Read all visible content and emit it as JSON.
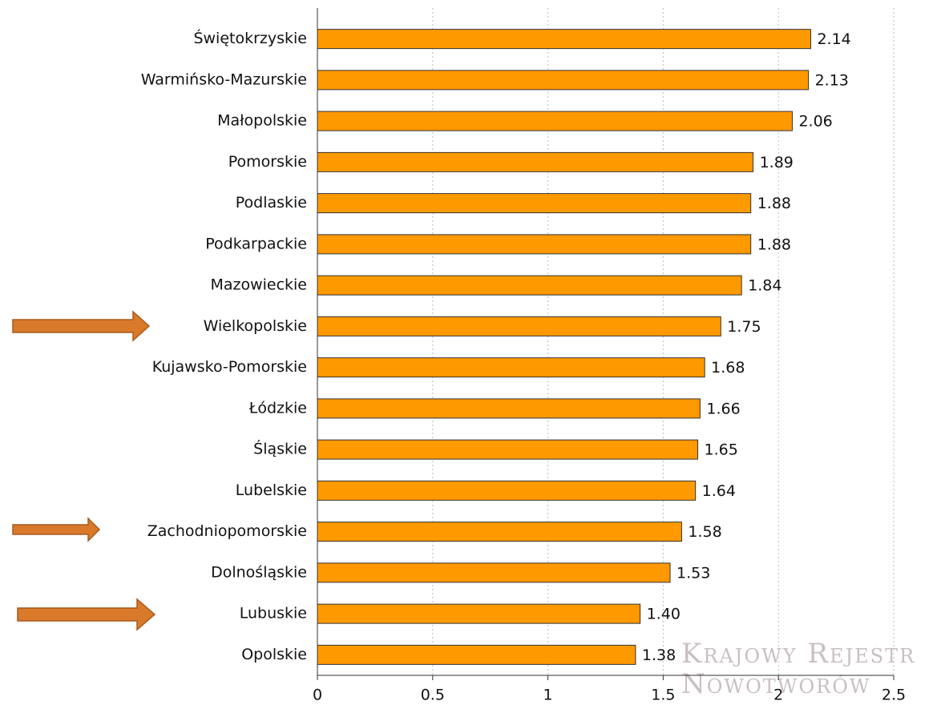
{
  "chart_data": {
    "type": "barh",
    "categories": [
      "Świętokrzyskie",
      "Warmińsko-Mazurskie",
      "Małopolskie",
      "Pomorskie",
      "Podlaskie",
      "Podkarpackie",
      "Mazowieckie",
      "Wielkopolskie",
      "Kujawsko-Pomorskie",
      "Łódzkie",
      "Śląskie",
      "Lubelskie",
      "Zachodniopomorskie",
      "Dolnośląskie",
      "Lubuskie",
      "Opolskie"
    ],
    "values": [
      2.14,
      2.13,
      2.06,
      1.89,
      1.88,
      1.88,
      1.84,
      1.75,
      1.68,
      1.66,
      1.65,
      1.64,
      1.58,
      1.53,
      1.4,
      1.38
    ],
    "value_labels": [
      "2.14",
      "2.13",
      "2.06",
      "1.89",
      "1.88",
      "1.88",
      "1.84",
      "1.75",
      "1.68",
      "1.66",
      "1.65",
      "1.64",
      "1.58",
      "1.53",
      "1.40",
      "1.38"
    ],
    "color": "#ff9900",
    "xlim": [
      0,
      2.5
    ],
    "xticks": [
      0,
      0.5,
      1,
      1.5,
      2,
      2.5
    ],
    "grid": true,
    "watermark": [
      "Krajowy Rejestr",
      "Nowotworów"
    ]
  }
}
